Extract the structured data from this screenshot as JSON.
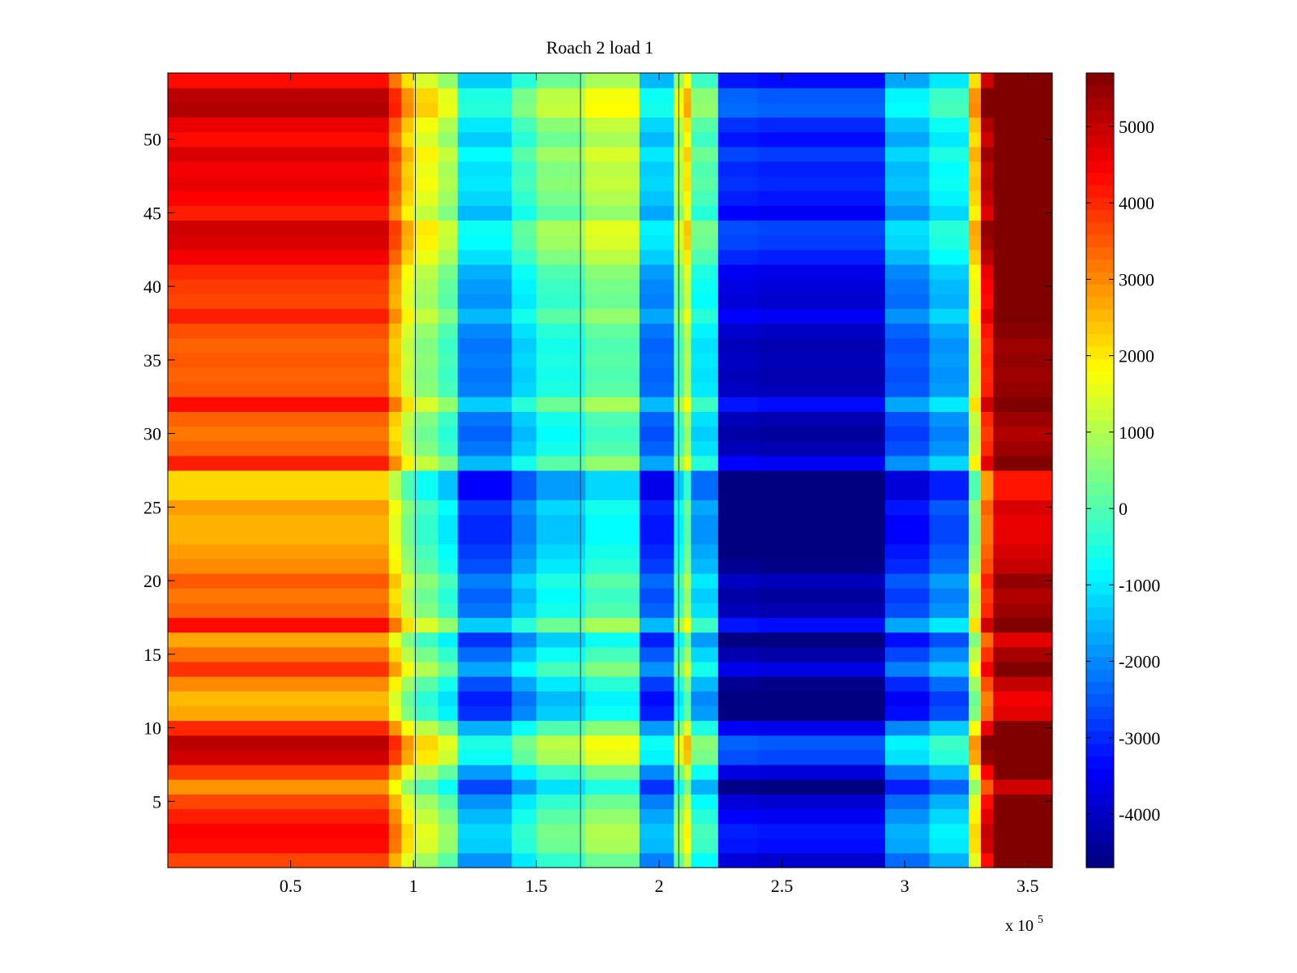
{
  "chart_data": {
    "type": "heatmap",
    "title": "Roach 2 load 1",
    "xlabel": "",
    "ylabel": "",
    "x_exponent_label": "x 10",
    "x_exponent_power": "5",
    "xlim": [
      0,
      360000
    ],
    "ylim": [
      0.5,
      54.5
    ],
    "x_ticks": [
      {
        "value": 50000,
        "label": "0.5"
      },
      {
        "value": 100000,
        "label": "1"
      },
      {
        "value": 150000,
        "label": "1.5"
      },
      {
        "value": 200000,
        "label": "2"
      },
      {
        "value": 250000,
        "label": "2.5"
      },
      {
        "value": 300000,
        "label": "3"
      },
      {
        "value": 350000,
        "label": "3.5"
      }
    ],
    "y_ticks": [
      {
        "value": 5,
        "label": "5"
      },
      {
        "value": 10,
        "label": "10"
      },
      {
        "value": 15,
        "label": "15"
      },
      {
        "value": 20,
        "label": "20"
      },
      {
        "value": 25,
        "label": "25"
      },
      {
        "value": 30,
        "label": "30"
      },
      {
        "value": 35,
        "label": "35"
      },
      {
        "value": 40,
        "label": "40"
      },
      {
        "value": 45,
        "label": "45"
      },
      {
        "value": 50,
        "label": "50"
      }
    ],
    "colorbar": {
      "colormap": "jet",
      "range": [
        -4700,
        5700
      ],
      "ticks": [
        {
          "value": -4000,
          "label": "-4000"
        },
        {
          "value": -3000,
          "label": "-3000"
        },
        {
          "value": -2000,
          "label": "-2000"
        },
        {
          "value": -1000,
          "label": "-1000"
        },
        {
          "value": 0,
          "label": "0"
        },
        {
          "value": 1000,
          "label": "1000"
        },
        {
          "value": 2000,
          "label": "2000"
        },
        {
          "value": 3000,
          "label": "3000"
        },
        {
          "value": 4000,
          "label": "4000"
        },
        {
          "value": 5000,
          "label": "5000"
        }
      ]
    },
    "n_rows": 54,
    "row_offsets": [
      {
        "row": 1,
        "offset": 0
      },
      {
        "row": 2,
        "offset": 600
      },
      {
        "row": 3,
        "offset": 700
      },
      {
        "row": 4,
        "offset": 400
      },
      {
        "row": 5,
        "offset": 0
      },
      {
        "row": 6,
        "offset": -800
      },
      {
        "row": 7,
        "offset": 100
      },
      {
        "row": 8,
        "offset": 1200
      },
      {
        "row": 9,
        "offset": 1400
      },
      {
        "row": 10,
        "offset": 300
      },
      {
        "row": 11,
        "offset": -1000
      },
      {
        "row": 12,
        "offset": -1200
      },
      {
        "row": 13,
        "offset": -700
      },
      {
        "row": 14,
        "offset": 200
      },
      {
        "row": 15,
        "offset": -400
      },
      {
        "row": 16,
        "offset": -1000
      },
      {
        "row": 17,
        "offset": 600
      },
      {
        "row": 18,
        "offset": -300
      },
      {
        "row": 19,
        "offset": -500
      },
      {
        "row": 20,
        "offset": -200
      },
      {
        "row": 21,
        "offset": -700
      },
      {
        "row": 22,
        "offset": -900
      },
      {
        "row": 23,
        "offset": -1100
      },
      {
        "row": 24,
        "offset": -1100
      },
      {
        "row": 25,
        "offset": -900
      },
      {
        "row": 26,
        "offset": -1500
      },
      {
        "row": 27,
        "offset": -1500
      },
      {
        "row": 28,
        "offset": 400
      },
      {
        "row": 29,
        "offset": -300
      },
      {
        "row": 30,
        "offset": -500
      },
      {
        "row": 31,
        "offset": -300
      },
      {
        "row": 32,
        "offset": 600
      },
      {
        "row": 33,
        "offset": -200
      },
      {
        "row": 34,
        "offset": -300
      },
      {
        "row": 35,
        "offset": -200
      },
      {
        "row": 36,
        "offset": -300
      },
      {
        "row": 37,
        "offset": -100
      },
      {
        "row": 38,
        "offset": 400
      },
      {
        "row": 39,
        "offset": 0
      },
      {
        "row": 40,
        "offset": 100
      },
      {
        "row": 41,
        "offset": 300
      },
      {
        "row": 42,
        "offset": 800
      },
      {
        "row": 43,
        "offset": 1100
      },
      {
        "row": 44,
        "offset": 1200
      },
      {
        "row": 45,
        "offset": 400
      },
      {
        "row": 46,
        "offset": 700
      },
      {
        "row": 47,
        "offset": 900
      },
      {
        "row": 48,
        "offset": 800
      },
      {
        "row": 49,
        "offset": 1100
      },
      {
        "row": 50,
        "offset": 600
      },
      {
        "row": 51,
        "offset": 900
      },
      {
        "row": 52,
        "offset": 1500
      },
      {
        "row": 53,
        "offset": 1400
      },
      {
        "row": 54,
        "offset": 600
      }
    ],
    "column_profile": [
      {
        "x_start": 0,
        "x_end": 90000,
        "value": 3700
      },
      {
        "x_start": 90000,
        "x_end": 95000,
        "value": 2600
      },
      {
        "x_start": 95000,
        "x_end": 100000,
        "value": 1500
      },
      {
        "x_start": 100000,
        "x_end": 110000,
        "value": 800
      },
      {
        "x_start": 110000,
        "x_end": 118000,
        "value": 100
      },
      {
        "x_start": 118000,
        "x_end": 140000,
        "value": -1900
      },
      {
        "x_start": 140000,
        "x_end": 150000,
        "value": -1000
      },
      {
        "x_start": 150000,
        "x_end": 170000,
        "value": -300
      },
      {
        "x_start": 170000,
        "x_end": 192000,
        "value": 300
      },
      {
        "x_start": 192000,
        "x_end": 206000,
        "value": -2100
      },
      {
        "x_start": 206000,
        "x_end": 210000,
        "value": 200
      },
      {
        "x_start": 210000,
        "x_end": 213000,
        "value": 1200
      },
      {
        "x_start": 213000,
        "x_end": 224000,
        "value": -800
      },
      {
        "x_start": 224000,
        "x_end": 240000,
        "value": -3800
      },
      {
        "x_start": 240000,
        "x_end": 292000,
        "value": -3900
      },
      {
        "x_start": 292000,
        "x_end": 310000,
        "value": -2300
      },
      {
        "x_start": 310000,
        "x_end": 326000,
        "value": -1600
      },
      {
        "x_start": 326000,
        "x_end": 331000,
        "value": 1500
      },
      {
        "x_start": 331000,
        "x_end": 336000,
        "value": 4300
      },
      {
        "x_start": 336000,
        "x_end": 360000,
        "value": 5700
      }
    ],
    "vertical_lines": [
      100800,
      168000,
      208000
    ]
  }
}
